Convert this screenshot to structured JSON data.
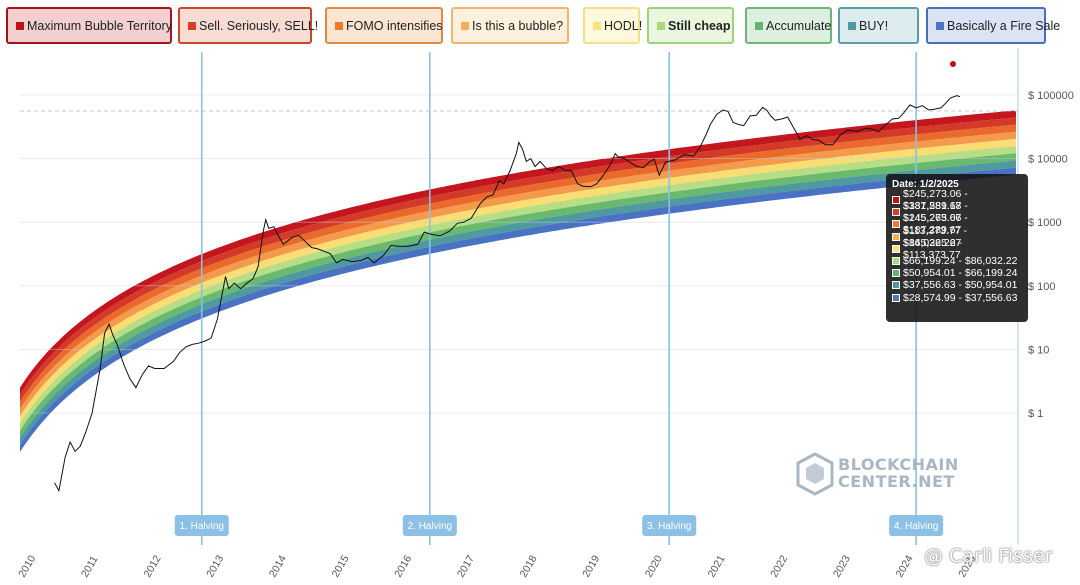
{
  "legend": [
    {
      "label": "Maximum Bubble Territory",
      "color": "#c0111b",
      "bg": "#f2d0d0",
      "border": "#a2151c",
      "bold": false
    },
    {
      "label": "Sell. Seriously, SELL!",
      "color": "#d6402a",
      "bg": "#f7dcd4",
      "border": "#c8462e",
      "bold": false
    },
    {
      "label": "FOMO intensifies",
      "color": "#ef7a30",
      "bg": "#fbe6d4",
      "border": "#e38a45",
      "bold": false
    },
    {
      "label": "Is this a bubble?",
      "color": "#f5ad5a",
      "bg": "#fdf0dc",
      "border": "#f1b56c",
      "bold": false
    },
    {
      "label": "HODL!",
      "color": "#fbe27a",
      "bg": "#fef8dd",
      "border": "#f3df8c",
      "bold": false
    },
    {
      "label": "Still cheap",
      "color": "#a9d87a",
      "bg": "#eaf6dd",
      "border": "#9fd17c",
      "bold": true
    },
    {
      "label": "Accumulate",
      "color": "#62b56f",
      "bg": "#ddf0e0",
      "border": "#6fb57b",
      "bold": false
    },
    {
      "label": "BUY!",
      "color": "#4f9a9e",
      "bg": "#dcecef",
      "border": "#5d9ca6",
      "bold": false
    },
    {
      "label": "Basically a Fire Sale",
      "color": "#4e76c4",
      "bg": "#dbe4f5",
      "border": "#4a6fb8",
      "bold": false
    }
  ],
  "chart_data": {
    "type": "area",
    "yscale": "log",
    "x": [
      2010,
      2011,
      2012,
      2013,
      2014,
      2015,
      2016,
      2017,
      2018,
      2019,
      2020,
      2021,
      2022,
      2023,
      2024,
      2025
    ],
    "x_tick_labels": [
      "2010",
      "2011",
      "2012",
      "2013",
      "2014",
      "2015",
      "2016",
      "2017",
      "2018",
      "2019",
      "2020",
      "2021",
      "2022",
      "2023",
      "2024",
      "2025"
    ],
    "y_tick_labels": [
      "$ 1",
      "$ 10",
      "$ 100",
      "$ 1000",
      "$ 10000",
      "$ 100000"
    ],
    "y_ticks": [
      1,
      10,
      100,
      1000,
      10000,
      100000
    ],
    "ylim": [
      0.01,
      1000000
    ],
    "xlim": [
      2010.5,
      2025.5
    ],
    "series": [
      {
        "name": "BTC price",
        "points": [
          [
            2010.55,
            0.08
          ],
          [
            2010.62,
            0.06
          ],
          [
            2010.72,
            0.2
          ],
          [
            2010.8,
            0.35
          ],
          [
            2010.88,
            0.25
          ],
          [
            2010.96,
            0.3
          ],
          [
            2011.05,
            0.5
          ],
          [
            2011.15,
            1.0
          ],
          [
            2011.28,
            5
          ],
          [
            2011.35,
            18
          ],
          [
            2011.42,
            25
          ],
          [
            2011.48,
            17
          ],
          [
            2011.55,
            12
          ],
          [
            2011.65,
            6
          ],
          [
            2011.75,
            3.5
          ],
          [
            2011.85,
            2.5
          ],
          [
            2011.95,
            4
          ],
          [
            2012.05,
            5.5
          ],
          [
            2012.15,
            5
          ],
          [
            2012.3,
            5
          ],
          [
            2012.45,
            6.5
          ],
          [
            2012.55,
            9
          ],
          [
            2012.65,
            11
          ],
          [
            2012.75,
            12
          ],
          [
            2012.85,
            12.5
          ],
          [
            2012.95,
            13.5
          ],
          [
            2013.05,
            15
          ],
          [
            2013.15,
            30
          ],
          [
            2013.28,
            140
          ],
          [
            2013.33,
            90
          ],
          [
            2013.42,
            110
          ],
          [
            2013.52,
            90
          ],
          [
            2013.62,
            110
          ],
          [
            2013.72,
            130
          ],
          [
            2013.8,
            200
          ],
          [
            2013.88,
            700
          ],
          [
            2013.92,
            1100
          ],
          [
            2013.97,
            800
          ],
          [
            2014.05,
            850
          ],
          [
            2014.12,
            620
          ],
          [
            2014.2,
            450
          ],
          [
            2014.35,
            580
          ],
          [
            2014.45,
            620
          ],
          [
            2014.55,
            500
          ],
          [
            2014.65,
            400
          ],
          [
            2014.75,
            380
          ],
          [
            2014.85,
            350
          ],
          [
            2014.95,
            320
          ],
          [
            2015.05,
            230
          ],
          [
            2015.15,
            260
          ],
          [
            2015.3,
            240
          ],
          [
            2015.45,
            250
          ],
          [
            2015.55,
            280
          ],
          [
            2015.65,
            230
          ],
          [
            2015.8,
            300
          ],
          [
            2015.92,
            430
          ],
          [
            2016.05,
            420
          ],
          [
            2016.2,
            420
          ],
          [
            2016.35,
            450
          ],
          [
            2016.45,
            700
          ],
          [
            2016.55,
            650
          ],
          [
            2016.7,
            610
          ],
          [
            2016.85,
            720
          ],
          [
            2016.98,
            960
          ],
          [
            2017.08,
            1000
          ],
          [
            2017.2,
            1150
          ],
          [
            2017.35,
            2000
          ],
          [
            2017.45,
            2500
          ],
          [
            2017.55,
            2700
          ],
          [
            2017.65,
            4500
          ],
          [
            2017.72,
            4000
          ],
          [
            2017.82,
            6500
          ],
          [
            2017.92,
            12000
          ],
          [
            2017.96,
            18000
          ],
          [
            2018.02,
            14000
          ],
          [
            2018.08,
            9000
          ],
          [
            2018.15,
            10000
          ],
          [
            2018.22,
            7500
          ],
          [
            2018.3,
            9000
          ],
          [
            2018.4,
            7000
          ],
          [
            2018.5,
            6500
          ],
          [
            2018.6,
            7500
          ],
          [
            2018.7,
            6500
          ],
          [
            2018.8,
            6400
          ],
          [
            2018.9,
            4000
          ],
          [
            2018.98,
            3700
          ],
          [
            2019.1,
            3600
          ],
          [
            2019.2,
            4000
          ],
          [
            2019.3,
            5300
          ],
          [
            2019.42,
            8000
          ],
          [
            2019.5,
            12000
          ],
          [
            2019.55,
            10500
          ],
          [
            2019.65,
            10000
          ],
          [
            2019.75,
            8500
          ],
          [
            2019.85,
            7500
          ],
          [
            2019.95,
            7200
          ],
          [
            2020.05,
            9000
          ],
          [
            2020.12,
            9800
          ],
          [
            2020.2,
            5500
          ],
          [
            2020.3,
            8800
          ],
          [
            2020.45,
            9500
          ],
          [
            2020.6,
            11500
          ],
          [
            2020.75,
            11000
          ],
          [
            2020.85,
            15000
          ],
          [
            2020.95,
            24000
          ],
          [
            2021.02,
            35000
          ],
          [
            2021.12,
            50000
          ],
          [
            2021.22,
            58000
          ],
          [
            2021.3,
            55000
          ],
          [
            2021.38,
            37000
          ],
          [
            2021.48,
            34000
          ],
          [
            2021.55,
            33000
          ],
          [
            2021.65,
            47000
          ],
          [
            2021.75,
            48000
          ],
          [
            2021.85,
            64000
          ],
          [
            2021.92,
            57000
          ],
          [
            2021.98,
            47000
          ],
          [
            2022.05,
            40000
          ],
          [
            2022.15,
            42000
          ],
          [
            2022.25,
            45000
          ],
          [
            2022.35,
            30000
          ],
          [
            2022.45,
            20000
          ],
          [
            2022.55,
            23000
          ],
          [
            2022.65,
            20000
          ],
          [
            2022.75,
            19500
          ],
          [
            2022.85,
            16500
          ],
          [
            2022.97,
            16500
          ],
          [
            2023.08,
            23000
          ],
          [
            2023.2,
            28000
          ],
          [
            2023.35,
            27000
          ],
          [
            2023.5,
            30000
          ],
          [
            2023.6,
            29000
          ],
          [
            2023.7,
            26500
          ],
          [
            2023.82,
            34500
          ],
          [
            2023.92,
            42000
          ],
          [
            2024.02,
            43000
          ],
          [
            2024.1,
            52000
          ],
          [
            2024.2,
            70000
          ],
          [
            2024.3,
            63000
          ],
          [
            2024.4,
            68000
          ],
          [
            2024.5,
            58000
          ],
          [
            2024.6,
            60000
          ],
          [
            2024.7,
            63000
          ],
          [
            2024.85,
            90000
          ],
          [
            2024.95,
            98000
          ],
          [
            2025.0,
            94000
          ]
        ]
      }
    ],
    "halvings": [
      {
        "label": "1. Halving",
        "x": 2012.9
      },
      {
        "label": "2. Halving",
        "x": 2016.54
      },
      {
        "label": "3. Halving",
        "x": 2020.36
      },
      {
        "label": "4. Halving",
        "x": 2024.3
      }
    ],
    "tooltip": {
      "title": "Date: 1/2/2025",
      "rows": [
        "$245,273.06 - $331,581.18",
        "$187,289.67 - $245,273.06",
        "$145,265.67 - $187,289.67",
        "$113,373.77 - $145,265.67",
        "$86,032.22 - $113,373.77",
        "$66,199.24 - $86,032.22",
        "$50,954.01 - $66,199.24",
        "$37,556.63 - $50,954.01",
        "$28,574.99 - $37,556.63"
      ]
    },
    "grid": true
  },
  "watermark": {
    "line1": "BLOCKCHAIN",
    "line2": "CENTER.NET"
  },
  "credit": "@ Carli Fisser"
}
